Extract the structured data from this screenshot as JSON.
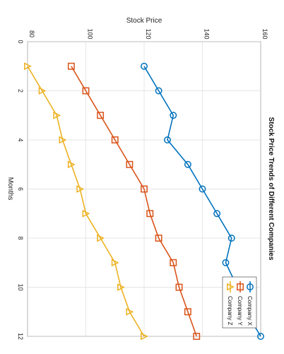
{
  "chart_data": {
    "type": "line",
    "title": "Stock Price Trends of Different Companies",
    "xlabel": "Months",
    "ylabel": "Stock Price",
    "xlim": [
      0,
      12
    ],
    "ylim": [
      80,
      160
    ],
    "x_ticks": [
      0,
      2,
      4,
      6,
      8,
      10,
      12
    ],
    "y_ticks": [
      80,
      100,
      120,
      140,
      160
    ],
    "grid": true,
    "legend_position": "bottom-right",
    "x": [
      1,
      2,
      3,
      4,
      5,
      6,
      7,
      8,
      9,
      10,
      11,
      12
    ],
    "series": [
      {
        "name": "Company X",
        "color": "#0072BD",
        "marker": "circle",
        "values": [
          120,
          125,
          130,
          128,
          135,
          140,
          145,
          150,
          148,
          152,
          155,
          160
        ]
      },
      {
        "name": "Company Y",
        "color": "#D95319",
        "marker": "square",
        "values": [
          95,
          100,
          105,
          110,
          115,
          120,
          122,
          125,
          130,
          132,
          135,
          138
        ]
      },
      {
        "name": "Company Z",
        "color": "#EDB120",
        "marker": "triangle",
        "values": [
          80,
          85,
          90,
          92,
          95,
          98,
          100,
          105,
          110,
          112,
          115,
          120
        ]
      }
    ]
  }
}
